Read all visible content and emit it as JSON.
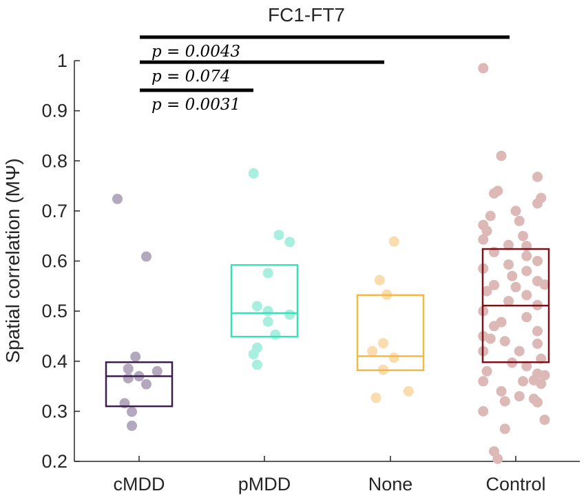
{
  "chart_data": {
    "type": "scatter",
    "title": "FC1-FT7",
    "xlabel": "",
    "ylabel": "Spatial correlation (MΨ)",
    "ylim": [
      0.2,
      1.0
    ],
    "yticks": [
      "0.2",
      "0.3",
      "0.4",
      "0.5",
      "0.6",
      "0.7",
      "0.8",
      "0.9",
      "1"
    ],
    "categories": [
      "cMDD",
      "pMDD",
      "None",
      "Control"
    ],
    "groups": [
      {
        "name": "cMDD",
        "color": "#3a1f4d",
        "point_color": "#b3a8bd",
        "box": {
          "q1": 0.31,
          "median": 0.37,
          "q3": 0.398
        },
        "points": [
          {
            "o": -0.3,
            "v": 0.724
          },
          {
            "o": 0.1,
            "v": 0.609
          },
          {
            "o": -0.05,
            "v": 0.409
          },
          {
            "o": -0.15,
            "v": 0.385
          },
          {
            "o": 0.0,
            "v": 0.37
          },
          {
            "o": -0.15,
            "v": 0.366
          },
          {
            "o": 0.25,
            "v": 0.38
          },
          {
            "o": 0.1,
            "v": 0.354
          },
          {
            "o": -0.2,
            "v": 0.316
          },
          {
            "o": -0.1,
            "v": 0.299
          },
          {
            "o": -0.1,
            "v": 0.271
          }
        ]
      },
      {
        "name": "pMDD",
        "color": "#2ee6b8",
        "point_color": "#a8efe0",
        "box": {
          "q1": 0.449,
          "median": 0.496,
          "q3": 0.592
        },
        "points": [
          {
            "o": -0.15,
            "v": 0.775
          },
          {
            "o": 0.2,
            "v": 0.652
          },
          {
            "o": 0.35,
            "v": 0.638
          },
          {
            "o": 0.05,
            "v": 0.576
          },
          {
            "o": -0.1,
            "v": 0.51
          },
          {
            "o": 0.05,
            "v": 0.5
          },
          {
            "o": 0.35,
            "v": 0.493
          },
          {
            "o": 0.05,
            "v": 0.479
          },
          {
            "o": 0.15,
            "v": 0.453
          },
          {
            "o": -0.1,
            "v": 0.427
          },
          {
            "o": -0.15,
            "v": 0.414
          },
          {
            "o": -0.1,
            "v": 0.393
          }
        ]
      },
      {
        "name": "None",
        "color": "#f5b840",
        "point_color": "#fbdcae",
        "box": {
          "q1": 0.382,
          "median": 0.41,
          "q3": 0.532
        },
        "points": [
          {
            "o": 0.05,
            "v": 0.639
          },
          {
            "o": -0.15,
            "v": 0.562
          },
          {
            "o": -0.05,
            "v": 0.533
          },
          {
            "o": -0.1,
            "v": 0.436
          },
          {
            "o": -0.25,
            "v": 0.42
          },
          {
            "o": 0.05,
            "v": 0.407
          },
          {
            "o": -0.1,
            "v": 0.383
          },
          {
            "o": 0.25,
            "v": 0.34
          },
          {
            "o": -0.2,
            "v": 0.327
          }
        ]
      },
      {
        "name": "Control",
        "color": "#7a1018",
        "point_color": "#dcb9b6",
        "box": {
          "q1": 0.398,
          "median": 0.511,
          "q3": 0.624
        },
        "points": [
          {
            "o": -0.45,
            "v": 0.985
          },
          {
            "o": -0.2,
            "v": 0.81
          },
          {
            "o": 0.3,
            "v": 0.768
          },
          {
            "o": -0.25,
            "v": 0.74
          },
          {
            "o": -0.3,
            "v": 0.735
          },
          {
            "o": 0.35,
            "v": 0.726
          },
          {
            "o": 0.3,
            "v": 0.715
          },
          {
            "o": 0.0,
            "v": 0.7
          },
          {
            "o": -0.35,
            "v": 0.69
          },
          {
            "o": 0.05,
            "v": 0.68
          },
          {
            "o": -0.45,
            "v": 0.672
          },
          {
            "o": -0.4,
            "v": 0.66
          },
          {
            "o": 0.1,
            "v": 0.65
          },
          {
            "o": -0.45,
            "v": 0.643
          },
          {
            "o": -0.1,
            "v": 0.632
          },
          {
            "o": 0.15,
            "v": 0.63
          },
          {
            "o": -0.3,
            "v": 0.618
          },
          {
            "o": 0.15,
            "v": 0.61
          },
          {
            "o": 0.3,
            "v": 0.6
          },
          {
            "o": -0.1,
            "v": 0.593
          },
          {
            "o": -0.45,
            "v": 0.585
          },
          {
            "o": 0.15,
            "v": 0.58
          },
          {
            "o": -0.05,
            "v": 0.57
          },
          {
            "o": 0.3,
            "v": 0.56
          },
          {
            "o": 0.4,
            "v": 0.553
          },
          {
            "o": -0.3,
            "v": 0.552
          },
          {
            "o": 0.0,
            "v": 0.548
          },
          {
            "o": -0.4,
            "v": 0.54
          },
          {
            "o": 0.15,
            "v": 0.532
          },
          {
            "o": -0.1,
            "v": 0.52
          },
          {
            "o": 0.3,
            "v": 0.512
          },
          {
            "o": -0.45,
            "v": 0.5
          },
          {
            "o": 0.15,
            "v": 0.488
          },
          {
            "o": -0.2,
            "v": 0.478
          },
          {
            "o": -0.3,
            "v": 0.47
          },
          {
            "o": 0.3,
            "v": 0.46
          },
          {
            "o": -0.45,
            "v": 0.45
          },
          {
            "o": -0.35,
            "v": 0.445
          },
          {
            "o": -0.15,
            "v": 0.44
          },
          {
            "o": 0.3,
            "v": 0.435
          },
          {
            "o": -0.45,
            "v": 0.42
          },
          {
            "o": 0.05,
            "v": 0.42
          },
          {
            "o": 0.35,
            "v": 0.405
          },
          {
            "o": -0.05,
            "v": 0.397
          },
          {
            "o": 0.15,
            "v": 0.39
          },
          {
            "o": -0.4,
            "v": 0.38
          },
          {
            "o": 0.3,
            "v": 0.375
          },
          {
            "o": 0.4,
            "v": 0.372
          },
          {
            "o": -0.45,
            "v": 0.36
          },
          {
            "o": 0.25,
            "v": 0.362
          },
          {
            "o": 0.1,
            "v": 0.36
          },
          {
            "o": 0.35,
            "v": 0.355
          },
          {
            "o": -0.2,
            "v": 0.34
          },
          {
            "o": 0.05,
            "v": 0.33
          },
          {
            "o": 0.25,
            "v": 0.325
          },
          {
            "o": -0.15,
            "v": 0.32
          },
          {
            "o": 0.3,
            "v": 0.318
          },
          {
            "o": -0.45,
            "v": 0.3
          },
          {
            "o": 0.4,
            "v": 0.283
          },
          {
            "o": -0.15,
            "v": 0.265
          },
          {
            "o": -0.3,
            "v": 0.22
          },
          {
            "o": -0.25,
            "v": 0.205
          }
        ]
      }
    ],
    "significance": [
      {
        "label": "p = 0.0043",
        "from": "cMDD",
        "to": "Control",
        "y": 1.047
      },
      {
        "label": "p = 0.074",
        "from": "cMDD",
        "to": "None",
        "y": 0.997
      },
      {
        "label": "p = 0.0031",
        "from": "cMDD",
        "to": "pMDD",
        "y": 0.941
      }
    ]
  }
}
